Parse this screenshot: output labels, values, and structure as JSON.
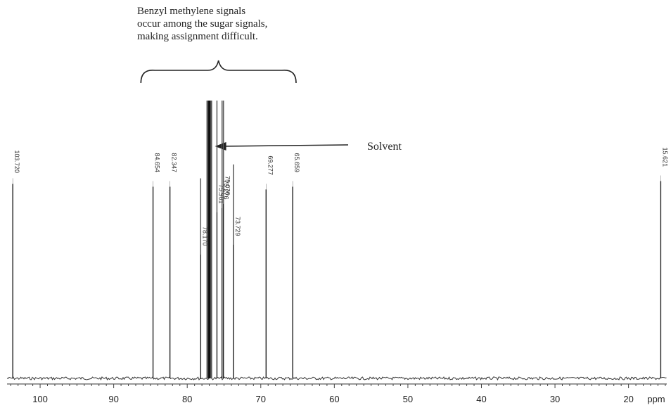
{
  "chart_data": {
    "type": "line",
    "title": "",
    "xlabel": "",
    "ylabel": "",
    "x_unit": "ppm",
    "x_reversed": true,
    "xlim": [
      104.5,
      14.8
    ],
    "xticks": [
      100,
      90,
      80,
      70,
      60,
      50,
      40,
      30,
      20
    ],
    "peaks": [
      {
        "ppm": 103.72,
        "label": "103.720",
        "intensity": 0.7
      },
      {
        "ppm": 84.65,
        "label": "84.654",
        "intensity": 0.69
      },
      {
        "ppm": 82.35,
        "label": "82.347",
        "intensity": 0.69
      },
      {
        "ppm": 78.17,
        "label": "78.170",
        "intensity": 0.72
      },
      {
        "ppm": 75.96,
        "label": "75.961",
        "intensity": 1.0
      },
      {
        "ppm": 75.27,
        "label": "75.276",
        "intensity": 1.0
      },
      {
        "ppm": 75.08,
        "label": "75.076",
        "intensity": 1.0
      },
      {
        "ppm": 73.73,
        "label": "73.729",
        "intensity": 0.77
      },
      {
        "ppm": 69.28,
        "label": "69.277",
        "intensity": 0.68
      },
      {
        "ppm": 65.66,
        "label": "65.659",
        "intensity": 0.69
      },
      {
        "ppm": 15.62,
        "label": "15.621",
        "intensity": 0.71
      }
    ],
    "solvent_peak": {
      "ppm": 77.0,
      "intensity": 1.9
    },
    "annotations": {
      "note_lines": [
        "Benzyl methylene signals",
        "occur among the sugar signals,",
        "making assignment difficult."
      ],
      "note_range_ppm": [
        86.3,
        65.2
      ],
      "solvent_label": "Solvent"
    }
  }
}
